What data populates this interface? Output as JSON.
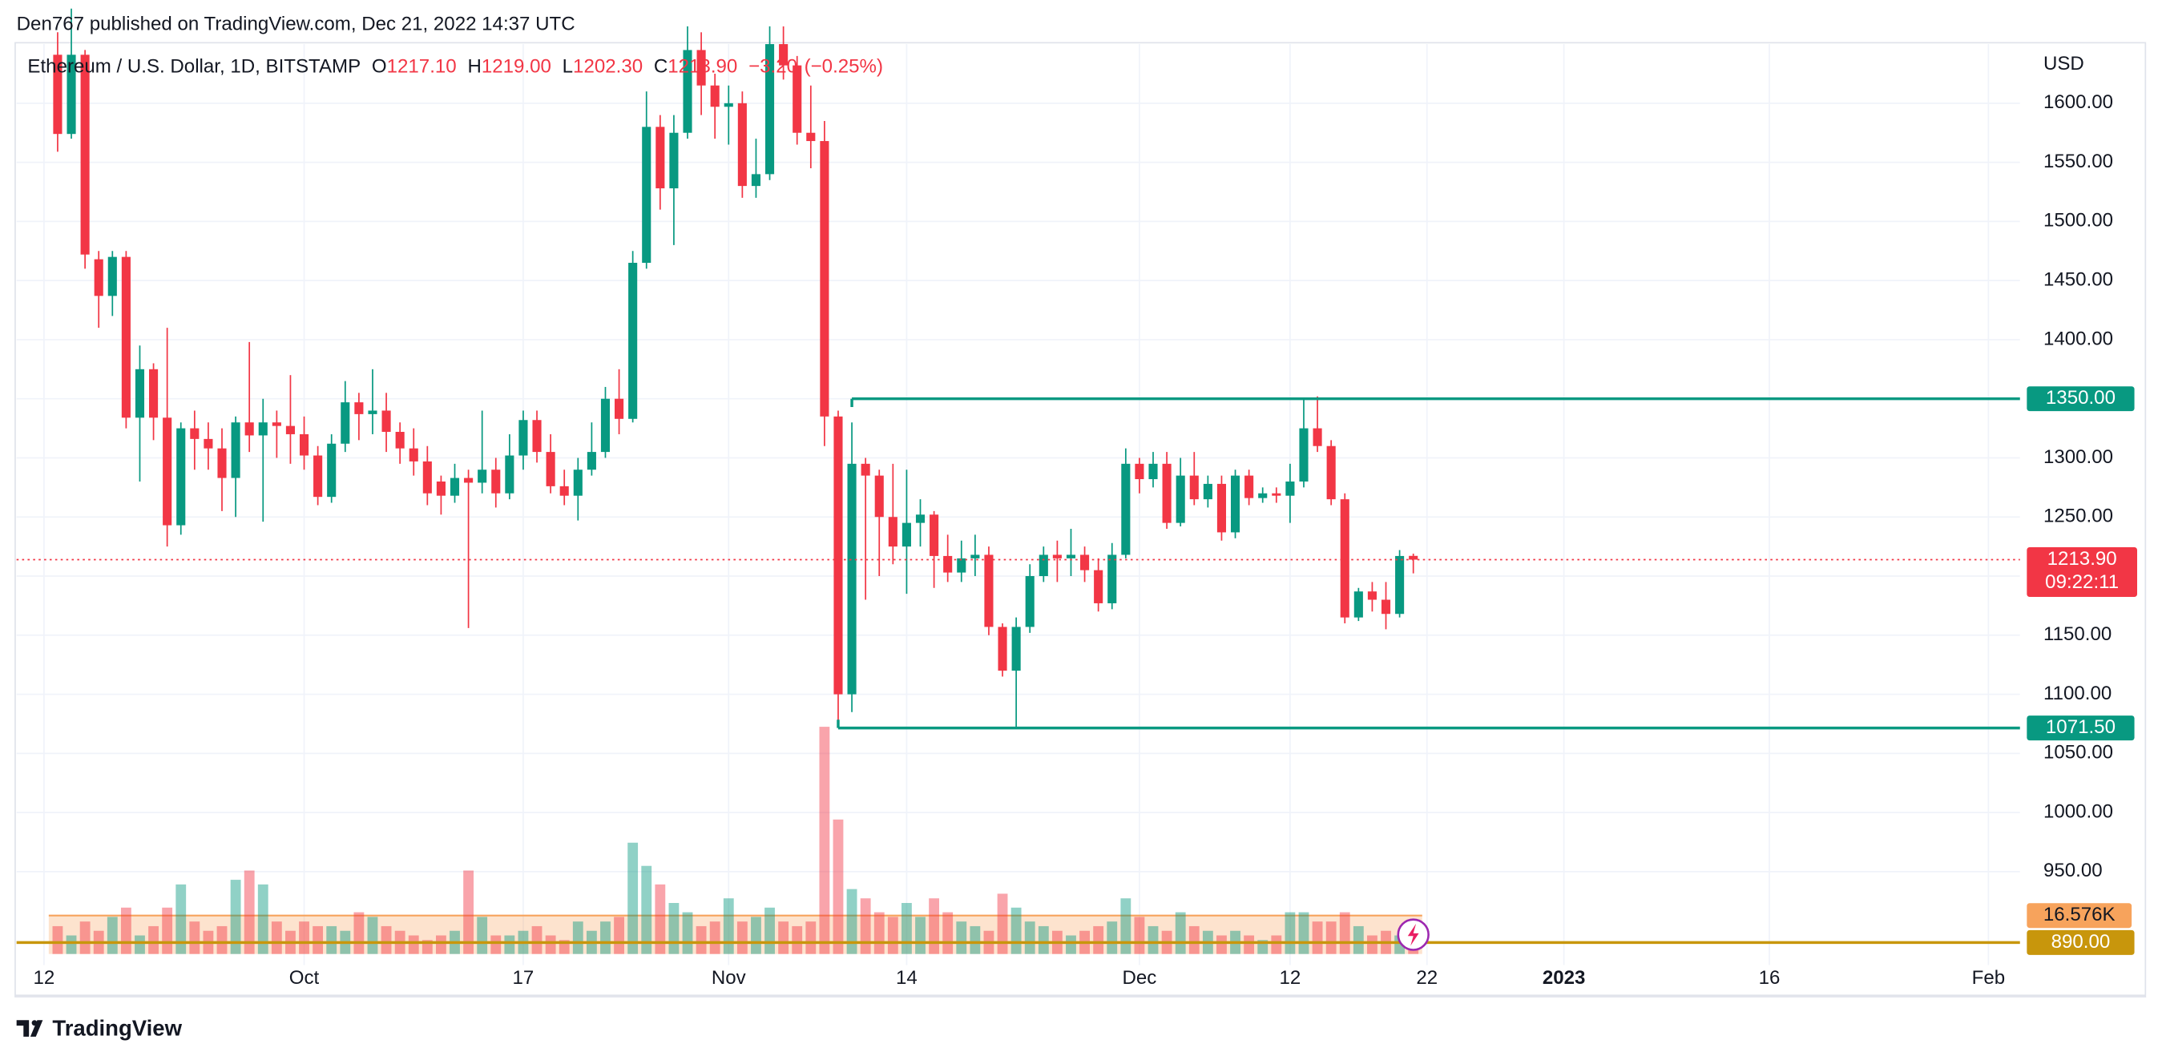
{
  "header": {
    "publisher": "Den767 published on TradingView.com, Dec 21, 2022 14:37 UTC"
  },
  "chart_data": {
    "type": "candlestick",
    "title": "Ethereum / U.S. Dollar, 1D, BITSTAMP",
    "legend": [
      {
        "key": "O",
        "value": 1217.1,
        "label": "1217.10"
      },
      {
        "key": "H",
        "value": 1219,
        "label": "1219.00"
      },
      {
        "key": "L",
        "value": 1202.3,
        "label": "1202.30"
      },
      {
        "key": "C",
        "value": 1213.9,
        "label": "1213.90"
      }
    ],
    "change": {
      "value": -3.2,
      "label": "−3.20"
    },
    "change_pct": {
      "value": -0.25,
      "label": "(−0.25%)"
    },
    "currency": "USD",
    "x": [
      "2022-09-13",
      "2022-09-14",
      "2022-09-15",
      "2022-09-16",
      "2022-09-17",
      "2022-09-18",
      "2022-09-19",
      "2022-09-20",
      "2022-09-21",
      "2022-09-22",
      "2022-09-23",
      "2022-09-24",
      "2022-09-25",
      "2022-09-26",
      "2022-09-27",
      "2022-09-28",
      "2022-09-29",
      "2022-09-30",
      "2022-10-01",
      "2022-10-02",
      "2022-10-03",
      "2022-10-04",
      "2022-10-05",
      "2022-10-06",
      "2022-10-07",
      "2022-10-08",
      "2022-10-09",
      "2022-10-10",
      "2022-10-11",
      "2022-10-12",
      "2022-10-13",
      "2022-10-14",
      "2022-10-15",
      "2022-10-16",
      "2022-10-17",
      "2022-10-18",
      "2022-10-19",
      "2022-10-20",
      "2022-10-21",
      "2022-10-22",
      "2022-10-23",
      "2022-10-24",
      "2022-10-25",
      "2022-10-26",
      "2022-10-27",
      "2022-10-28",
      "2022-10-29",
      "2022-10-30",
      "2022-10-31",
      "2022-11-01",
      "2022-11-02",
      "2022-11-03",
      "2022-11-04",
      "2022-11-05",
      "2022-11-06",
      "2022-11-07",
      "2022-11-08",
      "2022-11-09",
      "2022-11-10",
      "2022-11-11",
      "2022-11-12",
      "2022-11-13",
      "2022-11-14",
      "2022-11-15",
      "2022-11-16",
      "2022-11-17",
      "2022-11-18",
      "2022-11-19",
      "2022-11-20",
      "2022-11-21",
      "2022-11-22",
      "2022-11-23",
      "2022-11-24",
      "2022-11-25",
      "2022-11-26",
      "2022-11-27",
      "2022-11-28",
      "2022-11-29",
      "2022-11-30",
      "2022-12-01",
      "2022-12-02",
      "2022-12-03",
      "2022-12-04",
      "2022-12-05",
      "2022-12-06",
      "2022-12-07",
      "2022-12-08",
      "2022-12-09",
      "2022-12-10",
      "2022-12-11",
      "2022-12-12",
      "2022-12-13",
      "2022-12-14",
      "2022-12-15",
      "2022-12-16",
      "2022-12-17",
      "2022-12-18",
      "2022-12-19",
      "2022-12-20",
      "2022-12-21"
    ],
    "open": [
      1641,
      1574,
      1641,
      1468,
      1437,
      1470,
      1334,
      1375,
      1334,
      1243,
      1325,
      1316,
      1308,
      1283,
      1330,
      1319,
      1330,
      1327,
      1320,
      1302,
      1267,
      1312,
      1347,
      1337,
      1340,
      1322,
      1308,
      1297,
      1280,
      1268,
      1283,
      1279,
      1290,
      1270,
      1302,
      1332,
      1305,
      1276,
      1268,
      1290,
      1305,
      1350,
      1333,
      1465,
      1580,
      1528,
      1575,
      1645,
      1615,
      1597,
      1600,
      1530,
      1540,
      1650,
      1632,
      1575,
      1568,
      1335,
      1100,
      1295,
      1285,
      1250,
      1225,
      1245,
      1252,
      1217,
      1203,
      1215,
      1218,
      1157,
      1120,
      1157,
      1200,
      1218,
      1215,
      1218,
      1205,
      1177,
      1218,
      1295,
      1282,
      1295,
      1245,
      1285,
      1265,
      1278,
      1237,
      1285,
      1266,
      1270,
      1268,
      1280,
      1325,
      1310,
      1265,
      1165,
      1187,
      1180,
      1168,
      1217.1
    ],
    "high": [
      1660,
      1680,
      1645,
      1475,
      1475,
      1475,
      1395,
      1380,
      1410,
      1330,
      1340,
      1330,
      1325,
      1335,
      1398,
      1350,
      1340,
      1370,
      1335,
      1310,
      1320,
      1365,
      1355,
      1375,
      1355,
      1330,
      1325,
      1310,
      1285,
      1295,
      1290,
      1340,
      1300,
      1320,
      1340,
      1340,
      1320,
      1290,
      1300,
      1330,
      1360,
      1375,
      1475,
      1610,
      1590,
      1590,
      1665,
      1660,
      1625,
      1615,
      1610,
      1570,
      1665,
      1665,
      1640,
      1615,
      1585,
      1340,
      1330,
      1300,
      1290,
      1295,
      1290,
      1265,
      1255,
      1235,
      1230,
      1235,
      1225,
      1160,
      1165,
      1210,
      1225,
      1230,
      1240,
      1225,
      1215,
      1228,
      1308,
      1300,
      1305,
      1305,
      1300,
      1305,
      1285,
      1285,
      1290,
      1290,
      1275,
      1275,
      1295,
      1350,
      1352,
      1315,
      1270,
      1190,
      1195,
      1195,
      1222,
      1219
    ],
    "low": [
      1559,
      1570,
      1460,
      1410,
      1420,
      1325,
      1280,
      1315,
      1225,
      1235,
      1290,
      1290,
      1255,
      1250,
      1305,
      1246,
      1300,
      1295,
      1290,
      1260,
      1262,
      1305,
      1315,
      1320,
      1305,
      1295,
      1285,
      1260,
      1252,
      1262,
      1156,
      1270,
      1258,
      1265,
      1290,
      1296,
      1270,
      1260,
      1247,
      1285,
      1300,
      1320,
      1330,
      1460,
      1510,
      1480,
      1570,
      1590,
      1570,
      1565,
      1520,
      1520,
      1535,
      1620,
      1565,
      1545,
      1310,
      1075,
      1085,
      1180,
      1200,
      1210,
      1185,
      1225,
      1190,
      1195,
      1195,
      1200,
      1150,
      1115,
      1072,
      1152,
      1195,
      1195,
      1200,
      1195,
      1170,
      1172,
      1215,
      1270,
      1275,
      1240,
      1242,
      1260,
      1258,
      1230,
      1232,
      1260,
      1262,
      1262,
      1245,
      1275,
      1305,
      1260,
      1160,
      1162,
      1170,
      1155,
      1165,
      1202.3
    ],
    "close": [
      1574,
      1641,
      1472,
      1437,
      1470,
      1334,
      1375,
      1334,
      1243,
      1325,
      1316,
      1308,
      1283,
      1330,
      1319,
      1330,
      1327,
      1320,
      1302,
      1267,
      1312,
      1347,
      1337,
      1340,
      1322,
      1308,
      1297,
      1270,
      1268,
      1283,
      1279,
      1290,
      1270,
      1302,
      1332,
      1305,
      1276,
      1268,
      1290,
      1305,
      1350,
      1333,
      1465,
      1580,
      1528,
      1575,
      1645,
      1615,
      1597,
      1600,
      1530,
      1540,
      1650,
      1632,
      1575,
      1568,
      1335,
      1100,
      1295,
      1285,
      1250,
      1225,
      1245,
      1252,
      1217,
      1203,
      1215,
      1218,
      1157,
      1120,
      1157,
      1200,
      1218,
      1215,
      1218,
      1205,
      1177,
      1218,
      1295,
      1282,
      1295,
      1245,
      1285,
      1265,
      1278,
      1237,
      1285,
      1266,
      1270,
      1268,
      1280,
      1325,
      1310,
      1265,
      1165,
      1187,
      1180,
      1168,
      1217,
      1213.9
    ],
    "volume": [
      12000,
      8000,
      14000,
      10000,
      16000,
      20000,
      8000,
      12000,
      20000,
      30000,
      14000,
      10000,
      12000,
      32000,
      36000,
      30000,
      14000,
      10000,
      14000,
      12000,
      12000,
      10000,
      18000,
      16000,
      12000,
      10000,
      8000,
      6000,
      8000,
      10000,
      36000,
      16000,
      8000,
      8000,
      10000,
      12000,
      8000,
      6000,
      14000,
      10000,
      14000,
      16000,
      48000,
      38000,
      30000,
      22000,
      18000,
      12000,
      14000,
      24000,
      14000,
      16000,
      20000,
      14000,
      12000,
      14000,
      98000,
      58000,
      28000,
      24000,
      18000,
      16000,
      22000,
      16000,
      24000,
      18000,
      14000,
      12000,
      10000,
      26000,
      20000,
      14000,
      12000,
      10000,
      8000,
      10000,
      12000,
      14000,
      24000,
      16000,
      12000,
      10000,
      18000,
      12000,
      10000,
      8000,
      10000,
      8000,
      6000,
      8000,
      18000,
      18000,
      14000,
      14000,
      18000,
      12000,
      8000,
      10000,
      8000,
      2000
    ],
    "colors": {
      "up": "#089981",
      "down": "#f23645"
    },
    "xlim": [
      "2022-09-10",
      "2023-02-03"
    ],
    "xticks": [
      {
        "value": "2022-09-12",
        "label": "12"
      },
      {
        "value": "2022-10-01",
        "label": "Oct"
      },
      {
        "value": "2022-10-17",
        "label": "17"
      },
      {
        "value": "2022-11-01",
        "label": "Nov"
      },
      {
        "value": "2022-11-14",
        "label": "14"
      },
      {
        "value": "2022-12-01",
        "label": "Dec"
      },
      {
        "value": "2022-12-12",
        "label": "12"
      },
      {
        "value": "2022-12-22",
        "label": "22"
      },
      {
        "value": "2023-01-01",
        "label": "2023"
      },
      {
        "value": "2023-01-16",
        "label": "16"
      },
      {
        "value": "2023-02-01",
        "label": "Feb"
      }
    ],
    "ylim": [
      871,
      1650
    ],
    "yticks": [
      {
        "value": 950,
        "label": "950.00"
      },
      {
        "value": 1000,
        "label": "1000.00"
      },
      {
        "value": 1050,
        "label": "1050.00"
      },
      {
        "value": 1100,
        "label": "1100.00"
      },
      {
        "value": 1150,
        "label": "1150.00"
      },
      {
        "value": 1200,
        "label": "1200.00"
      },
      {
        "value": 1250,
        "label": "1250.00"
      },
      {
        "value": 1300,
        "label": "1300.00"
      },
      {
        "value": 1350,
        "label": "1350.00"
      },
      {
        "value": 1400,
        "label": "1400.00"
      },
      {
        "value": 1450,
        "label": "1450.00"
      },
      {
        "value": 1500,
        "label": "1500.00"
      },
      {
        "value": 1550,
        "label": "1550.00"
      },
      {
        "value": 1600,
        "label": "1600.00"
      }
    ],
    "volume_ylim": [
      0,
      110000
    ],
    "volume_ma": {
      "value": 16576,
      "label": "16.576K",
      "color": "#f7a35c"
    },
    "levels": [
      {
        "value": 1350,
        "label": "1350.00",
        "start": "2022-11-10",
        "color": "#089981"
      },
      {
        "value": 1071.5,
        "label": "1071.50",
        "start": "2022-11-09",
        "color": "#089981"
      },
      {
        "value": 890,
        "label": "890.00",
        "color": "#c8960c"
      }
    ],
    "last_price": {
      "value": 1213.9,
      "label": "1213.90",
      "countdown": "09:22:11",
      "color": "#f23645"
    },
    "grid": true
  },
  "footer": {
    "brand": "TradingView"
  }
}
